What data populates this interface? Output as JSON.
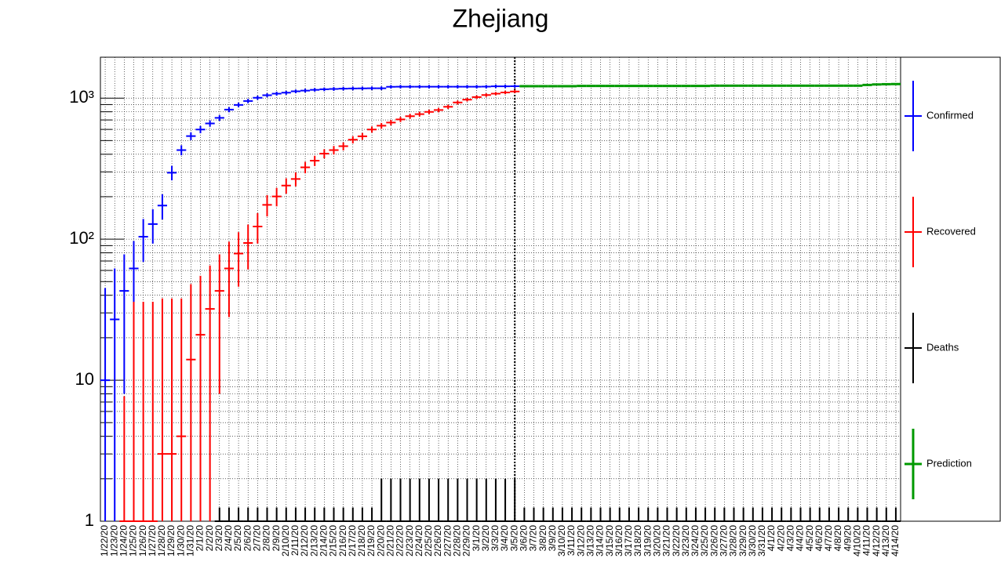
{
  "chart_data": {
    "type": "errorbar",
    "title": "Zhejiang",
    "log_y": true,
    "grid": true,
    "categories": [
      "1/22/20",
      "1/23/20",
      "1/24/20",
      "1/25/20",
      "1/26/20",
      "1/27/20",
      "1/28/20",
      "1/29/20",
      "1/30/20",
      "1/31/20",
      "2/1/20",
      "2/2/20",
      "2/3/20",
      "2/4/20",
      "2/5/20",
      "2/6/20",
      "2/7/20",
      "2/8/20",
      "2/9/20",
      "2/10/20",
      "2/11/20",
      "2/12/20",
      "2/13/20",
      "2/14/20",
      "2/15/20",
      "2/16/20",
      "2/17/20",
      "2/18/20",
      "2/19/20",
      "2/20/20",
      "2/21/20",
      "2/22/20",
      "2/23/20",
      "2/24/20",
      "2/25/20",
      "2/26/20",
      "2/27/20",
      "2/28/20",
      "2/29/20",
      "3/1/20",
      "3/2/20",
      "3/3/20",
      "3/4/20",
      "3/5/20",
      "3/6/20",
      "3/7/20",
      "3/8/20",
      "3/9/20",
      "3/10/20",
      "3/11/20",
      "3/12/20",
      "3/13/20",
      "3/14/20",
      "3/15/20",
      "3/16/20",
      "3/17/20",
      "3/18/20",
      "3/19/20",
      "3/20/20",
      "3/21/20",
      "3/22/20",
      "3/23/20",
      "3/24/20",
      "3/25/20",
      "3/26/20",
      "3/27/20",
      "3/28/20",
      "3/29/20",
      "3/30/20",
      "3/31/20",
      "4/1/20",
      "4/2/20",
      "4/3/20",
      "4/4/20",
      "4/5/20",
      "4/6/20",
      "4/7/20",
      "4/8/20",
      "4/9/20",
      "4/10/20",
      "4/11/20",
      "4/12/20",
      "4/13/20",
      "4/14/20"
    ],
    "ylim": [
      1,
      1950
    ],
    "yticks": [
      1,
      10,
      {
        "value": 100,
        "label": "10²"
      },
      {
        "value": 1000,
        "label": "10³"
      }
    ],
    "yminorticks": [
      2,
      3,
      4,
      5,
      6,
      7,
      8,
      9,
      20,
      30,
      40,
      50,
      60,
      70,
      80,
      90,
      200,
      300,
      400,
      500,
      600,
      700,
      800,
      900
    ],
    "series": [
      {
        "name": "Confirmed",
        "color": "#0000ff",
        "values": [
          10,
          27,
          43,
          62,
          104,
          128,
          173,
          296,
          428,
          538,
          599,
          661,
          724,
          829,
          895,
          954,
          1006,
          1048,
          1075,
          1092,
          1117,
          1131,
          1145,
          1155,
          1162,
          1167,
          1171,
          1172,
          1174,
          1175,
          1203,
          1205,
          1205,
          1205,
          1205,
          1205,
          1205,
          1205,
          1205,
          1205,
          1206,
          1213,
          1213,
          1215,
          null,
          null,
          null,
          null,
          null,
          null,
          null,
          null,
          null,
          null,
          null,
          null,
          null,
          null,
          null,
          null,
          null,
          null,
          null,
          null,
          null,
          null,
          null,
          null,
          null,
          null,
          null,
          null,
          null,
          null,
          null,
          null,
          null,
          null,
          null,
          null,
          null,
          null,
          null,
          null
        ],
        "errors": [
          35,
          35,
          35,
          35,
          35,
          35,
          35,
          35,
          35,
          35,
          35,
          35,
          35,
          35,
          35,
          35,
          35,
          35,
          35,
          35,
          35,
          35,
          35,
          35,
          35,
          35,
          35,
          35,
          35,
          35,
          35,
          35,
          35,
          35,
          35,
          35,
          35,
          35,
          35,
          35,
          35,
          35,
          35,
          35,
          null,
          null,
          null,
          null,
          null,
          null,
          null,
          null,
          null,
          null,
          null,
          null,
          null,
          null,
          null,
          null,
          null,
          null,
          null,
          null,
          null,
          null,
          null,
          null,
          null,
          null,
          null,
          null,
          null,
          null,
          null,
          null,
          null,
          null,
          null,
          null,
          null,
          null,
          null,
          null
        ]
      },
      {
        "name": "Recovered",
        "color": "#ff0000",
        "values": [
          null,
          null,
          1,
          1,
          1,
          1,
          3,
          3,
          4,
          14,
          21,
          32,
          43,
          62,
          79,
          94,
          123,
          175,
          201,
          240,
          267,
          323,
          360,
          404,
          428,
          456,
          507,
          536,
          599,
          637,
          671,
          706,
          744,
          770,
          799,
          823,
          868,
          931,
          976,
          1017,
          1051,
          1076,
          1097,
          1114,
          null,
          null,
          null,
          null,
          null,
          null,
          null,
          null,
          null,
          null,
          null,
          null,
          null,
          null,
          null,
          null,
          null,
          null,
          null,
          null,
          null,
          null,
          null,
          null,
          null,
          null,
          null,
          null,
          null,
          null,
          null,
          null,
          null,
          null,
          null,
          null,
          null,
          null,
          null,
          null
        ],
        "errors": [
          null,
          null,
          6.7,
          35,
          35,
          35,
          35,
          35,
          34,
          34,
          34,
          33,
          35,
          34,
          33,
          33,
          30,
          30,
          30,
          30,
          30,
          30,
          30,
          30,
          30,
          30,
          30,
          30,
          30,
          30,
          30,
          30,
          30,
          30,
          30,
          30,
          30,
          30,
          30,
          30,
          30,
          30,
          30,
          30,
          null,
          null,
          null,
          null,
          null,
          null,
          null,
          null,
          null,
          null,
          null,
          null,
          null,
          null,
          null,
          null,
          null,
          null,
          null,
          null,
          null,
          null,
          null,
          null,
          null,
          null,
          null,
          null,
          null,
          null,
          null,
          null,
          null,
          null,
          null,
          null,
          null,
          null,
          null,
          null
        ]
      },
      {
        "name": "Deaths",
        "color": "#000000",
        "values": [
          null,
          null,
          null,
          null,
          null,
          null,
          null,
          null,
          null,
          null,
          null,
          null,
          1,
          1,
          1,
          1,
          1,
          1,
          1,
          1,
          1,
          1,
          1,
          1,
          1,
          1,
          1,
          1,
          1,
          1,
          1,
          1,
          1,
          1,
          1,
          1,
          1,
          1,
          1,
          1,
          1,
          1,
          1,
          1,
          1,
          1,
          1,
          1,
          1,
          1,
          1,
          1,
          1,
          1,
          1,
          1,
          1,
          1,
          1,
          1,
          1,
          1,
          1,
          1,
          1,
          1,
          1,
          1,
          1,
          1,
          1,
          1,
          1,
          1,
          1,
          1,
          1,
          1,
          1,
          1,
          1,
          1,
          1,
          1
        ],
        "errors": [
          null,
          null,
          null,
          null,
          null,
          null,
          null,
          null,
          null,
          null,
          null,
          null,
          0.25,
          0.25,
          0.25,
          0.25,
          0.25,
          0.25,
          0.25,
          0.25,
          0.25,
          0.25,
          0.25,
          0.25,
          0.25,
          0.25,
          0.25,
          0.25,
          0.25,
          1,
          1,
          1,
          1,
          1,
          1,
          1,
          1,
          1,
          1,
          1,
          1,
          1,
          1,
          1,
          0.25,
          0.25,
          0.25,
          0.25,
          0.25,
          0.25,
          0.25,
          0.25,
          0.25,
          0.25,
          0.25,
          0.25,
          0.25,
          0.25,
          0.25,
          0.25,
          0.25,
          0.25,
          0.25,
          0.25,
          0.25,
          0.25,
          0.25,
          0.25,
          0.25,
          0.25,
          0.25,
          0.25,
          0.25,
          0.25,
          0.25,
          0.25,
          0.25,
          0.25,
          0.25,
          0.25,
          0.25,
          0.25,
          0.25,
          0.25
        ]
      },
      {
        "name": "Prediction",
        "color": "#009900",
        "values": [
          null,
          null,
          null,
          null,
          null,
          null,
          null,
          null,
          null,
          null,
          null,
          null,
          null,
          null,
          null,
          null,
          null,
          null,
          null,
          null,
          null,
          null,
          null,
          null,
          null,
          null,
          null,
          null,
          null,
          null,
          null,
          null,
          null,
          null,
          null,
          null,
          null,
          null,
          null,
          null,
          null,
          null,
          null,
          null,
          1215,
          1215,
          1215,
          1215,
          1215,
          1215,
          1220,
          1220,
          1220,
          1220,
          1220,
          1220,
          1220,
          1220,
          1220,
          1220,
          1220,
          1220,
          1220,
          1220,
          1225,
          1225,
          1225,
          1225,
          1225,
          1225,
          1225,
          1225,
          1225,
          1225,
          1225,
          1225,
          1225,
          1225,
          1225,
          1225,
          1240,
          1250,
          1255,
          1258
        ]
      }
    ]
  }
}
